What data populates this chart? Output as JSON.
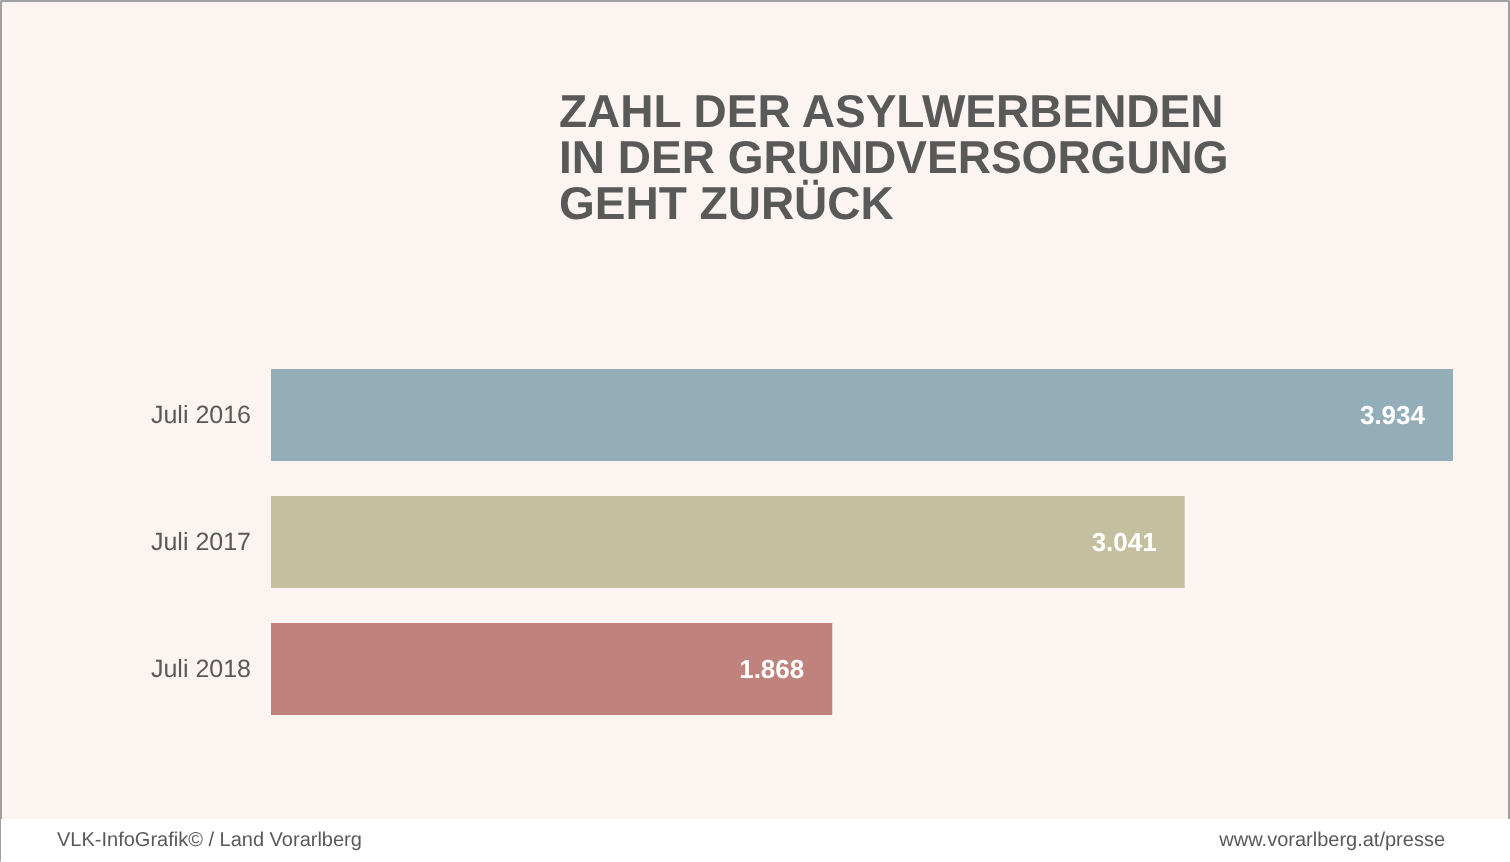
{
  "chart_data": {
    "type": "bar",
    "orientation": "horizontal",
    "title": "ZAHL DER ASYLWERBENDEN IN DER GRUNDVERSORGUNG GEHT ZURÜCK",
    "categories": [
      "Juli 2016",
      "Juli 2017",
      "Juli 2018"
    ],
    "values": [
      3934,
      3041,
      1868
    ],
    "colors": [
      "#93adb9",
      "#c4bf9f",
      "#bf827d"
    ],
    "value_labels": [
      "3.934",
      "3.041",
      "1.868"
    ],
    "tick_labels": "y",
    "annotations": [
      "VLK-InfoGrafik© / Land Vorarlberg",
      "www.vorarlberg.at/presse"
    ]
  }
}
